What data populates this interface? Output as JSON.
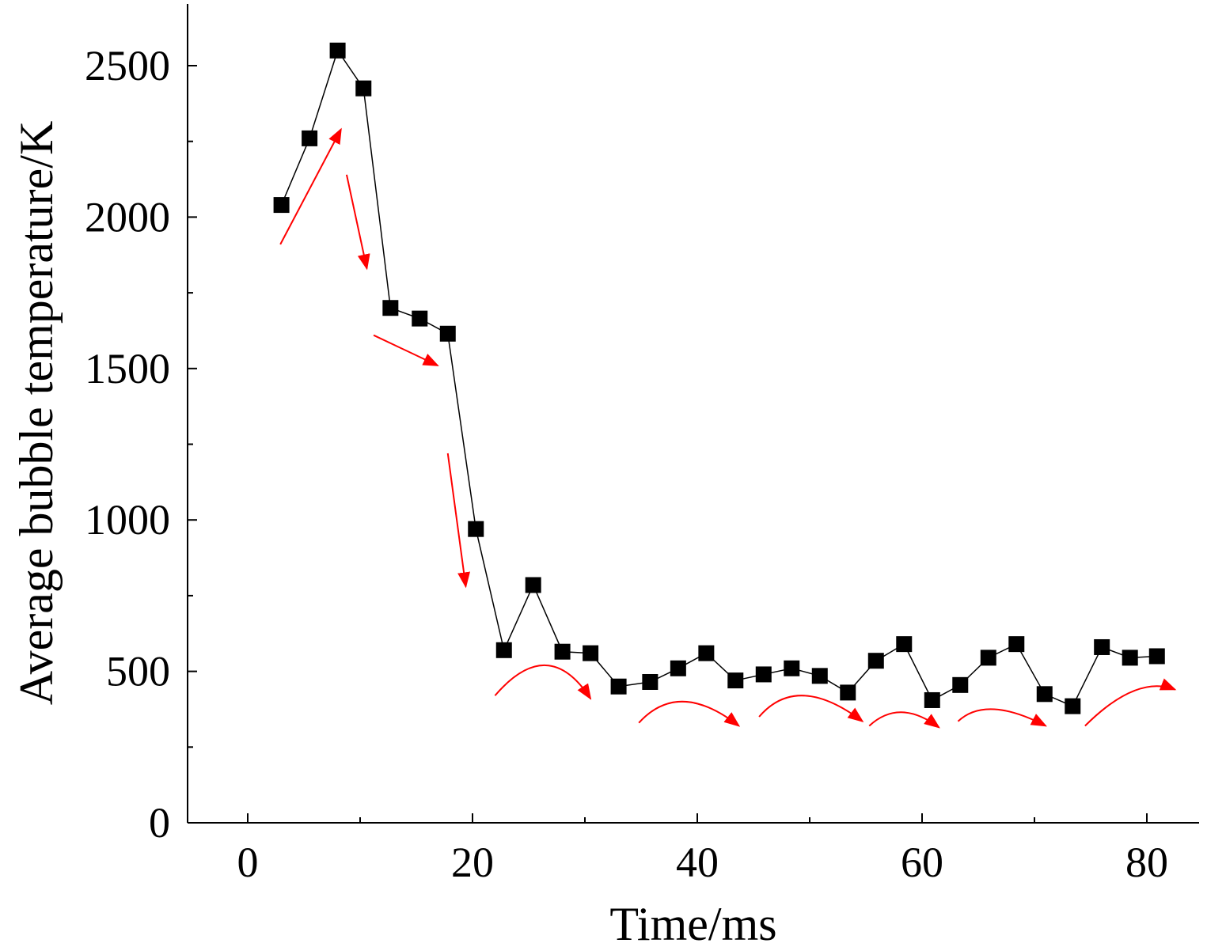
{
  "chart_data": {
    "type": "line",
    "xlabel": "Time/ms",
    "ylabel": "Average bubble temperature/K",
    "xlim": [
      -2.5,
      84.5
    ],
    "ylim": [
      0,
      2700
    ],
    "x_ticks": [
      "0",
      "20",
      "40",
      "60",
      "80"
    ],
    "y_ticks": [
      "0",
      "500",
      "1000",
      "1500",
      "2000",
      "2500"
    ],
    "marker": "square",
    "series": [
      {
        "points": [
          [
            3.0,
            2040
          ],
          [
            5.5,
            2260
          ],
          [
            8.0,
            2550
          ],
          [
            10.3,
            2425
          ],
          [
            12.7,
            1700
          ],
          [
            15.3,
            1665
          ],
          [
            17.8,
            1615
          ],
          [
            20.3,
            970
          ],
          [
            22.8,
            570
          ],
          [
            25.4,
            785
          ],
          [
            28.0,
            565
          ],
          [
            30.5,
            560
          ],
          [
            33.0,
            450
          ],
          [
            35.8,
            465
          ],
          [
            38.3,
            510
          ],
          [
            40.8,
            560
          ],
          [
            43.4,
            470
          ],
          [
            45.9,
            490
          ],
          [
            48.4,
            510
          ],
          [
            50.9,
            485
          ],
          [
            53.4,
            430
          ],
          [
            55.9,
            535
          ],
          [
            58.4,
            590
          ],
          [
            60.9,
            405
          ],
          [
            63.4,
            455
          ],
          [
            65.9,
            545
          ],
          [
            68.4,
            590
          ],
          [
            70.9,
            425
          ],
          [
            73.4,
            385
          ],
          [
            76.0,
            580
          ],
          [
            78.5,
            545
          ],
          [
            80.9,
            550
          ]
        ]
      }
    ],
    "annotations": {
      "color": "#ff0000",
      "arrows": [
        {
          "type": "straight",
          "from": [
            2.9,
            1910
          ],
          "to": [
            8.3,
            2290
          ]
        },
        {
          "type": "straight",
          "from": [
            8.8,
            2140
          ],
          "to": [
            10.6,
            1830
          ]
        },
        {
          "type": "straight",
          "from": [
            11.2,
            1610
          ],
          "to": [
            16.9,
            1510
          ]
        },
        {
          "type": "straight",
          "from": [
            17.8,
            1220
          ],
          "to": [
            19.4,
            780
          ]
        },
        {
          "type": "curved",
          "from": [
            22.0,
            420
          ],
          "peak": [
            26.5,
            520
          ],
          "to": [
            30.5,
            410
          ]
        },
        {
          "type": "curved",
          "from": [
            34.8,
            330
          ],
          "peak": [
            38.8,
            400
          ],
          "to": [
            43.7,
            320
          ]
        },
        {
          "type": "curved",
          "from": [
            45.5,
            350
          ],
          "peak": [
            49.5,
            420
          ],
          "to": [
            54.7,
            335
          ]
        },
        {
          "type": "curved",
          "from": [
            55.3,
            320
          ],
          "peak": [
            58.2,
            365
          ],
          "to": [
            61.5,
            315
          ]
        },
        {
          "type": "curved",
          "from": [
            63.2,
            335
          ],
          "peak": [
            66.4,
            375
          ],
          "to": [
            71.0,
            320
          ]
        },
        {
          "type": "curved",
          "from": [
            74.5,
            320
          ],
          "peak": [
            78.8,
            435
          ],
          "to": [
            82.5,
            440
          ]
        }
      ]
    }
  }
}
